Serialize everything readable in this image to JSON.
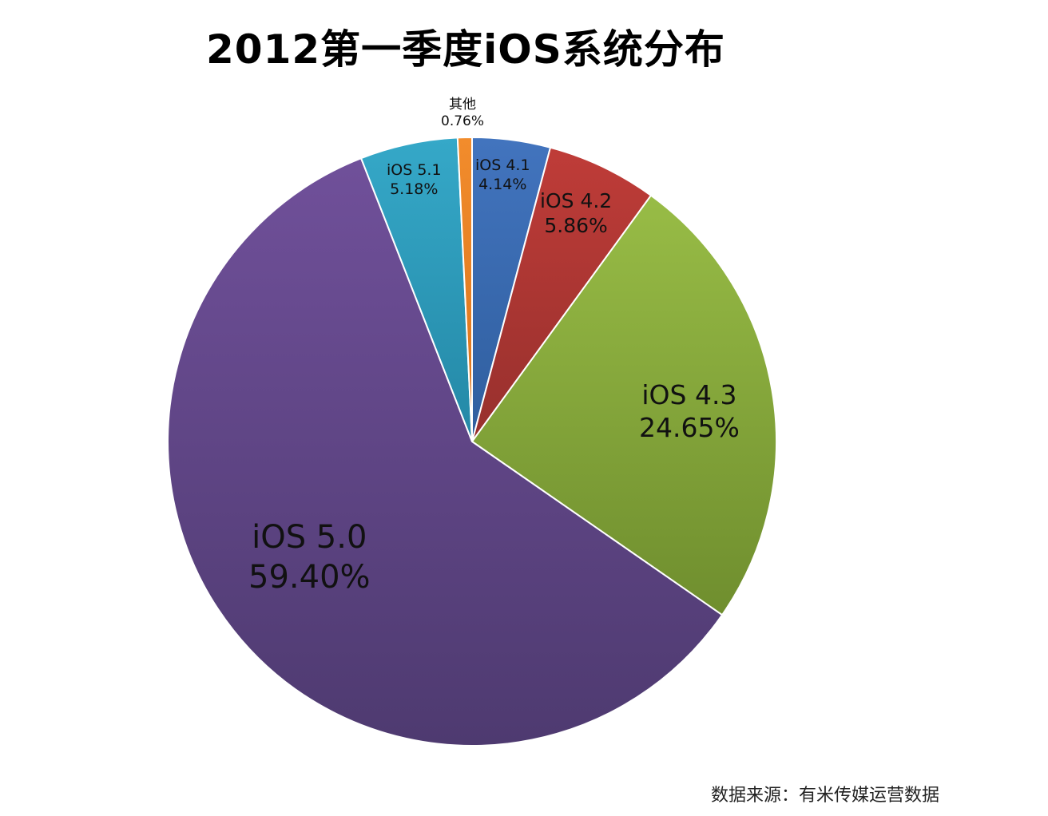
{
  "title": "2012第一季度iOS系统分布",
  "source": "数据来源：有米传媒运营数据",
  "chart_data": {
    "type": "pie",
    "title": "2012第一季度iOS系统分布",
    "categories": [
      "iOS 4.1",
      "iOS 4.2",
      "iOS 4.3",
      "iOS 5.0",
      "iOS 5.1",
      "其他"
    ],
    "values": [
      4.14,
      5.86,
      24.65,
      59.4,
      5.18,
      0.76
    ],
    "labels": [
      "4.14%",
      "5.86%",
      "24.65%",
      "59.40%",
      "5.18%",
      "0.76%"
    ],
    "colors": [
      "#3A6DB5",
      "#B53A36",
      "#8AAC3D",
      "#624A8A",
      "#2E9DBE",
      "#EC8224"
    ],
    "start_angle": "12 o'clock, clockwise",
    "legend": "none (data labels on slices)"
  },
  "slices": [
    {
      "name": "iOS 4.1",
      "pct": "4.14%"
    },
    {
      "name": "iOS 4.2",
      "pct": "5.86%"
    },
    {
      "name": "iOS 4.3",
      "pct": "24.65%"
    },
    {
      "name": "iOS 5.0",
      "pct": "59.40%"
    },
    {
      "name": "iOS 5.1",
      "pct": "5.18%"
    },
    {
      "name": "其他",
      "pct": "0.76%"
    }
  ]
}
